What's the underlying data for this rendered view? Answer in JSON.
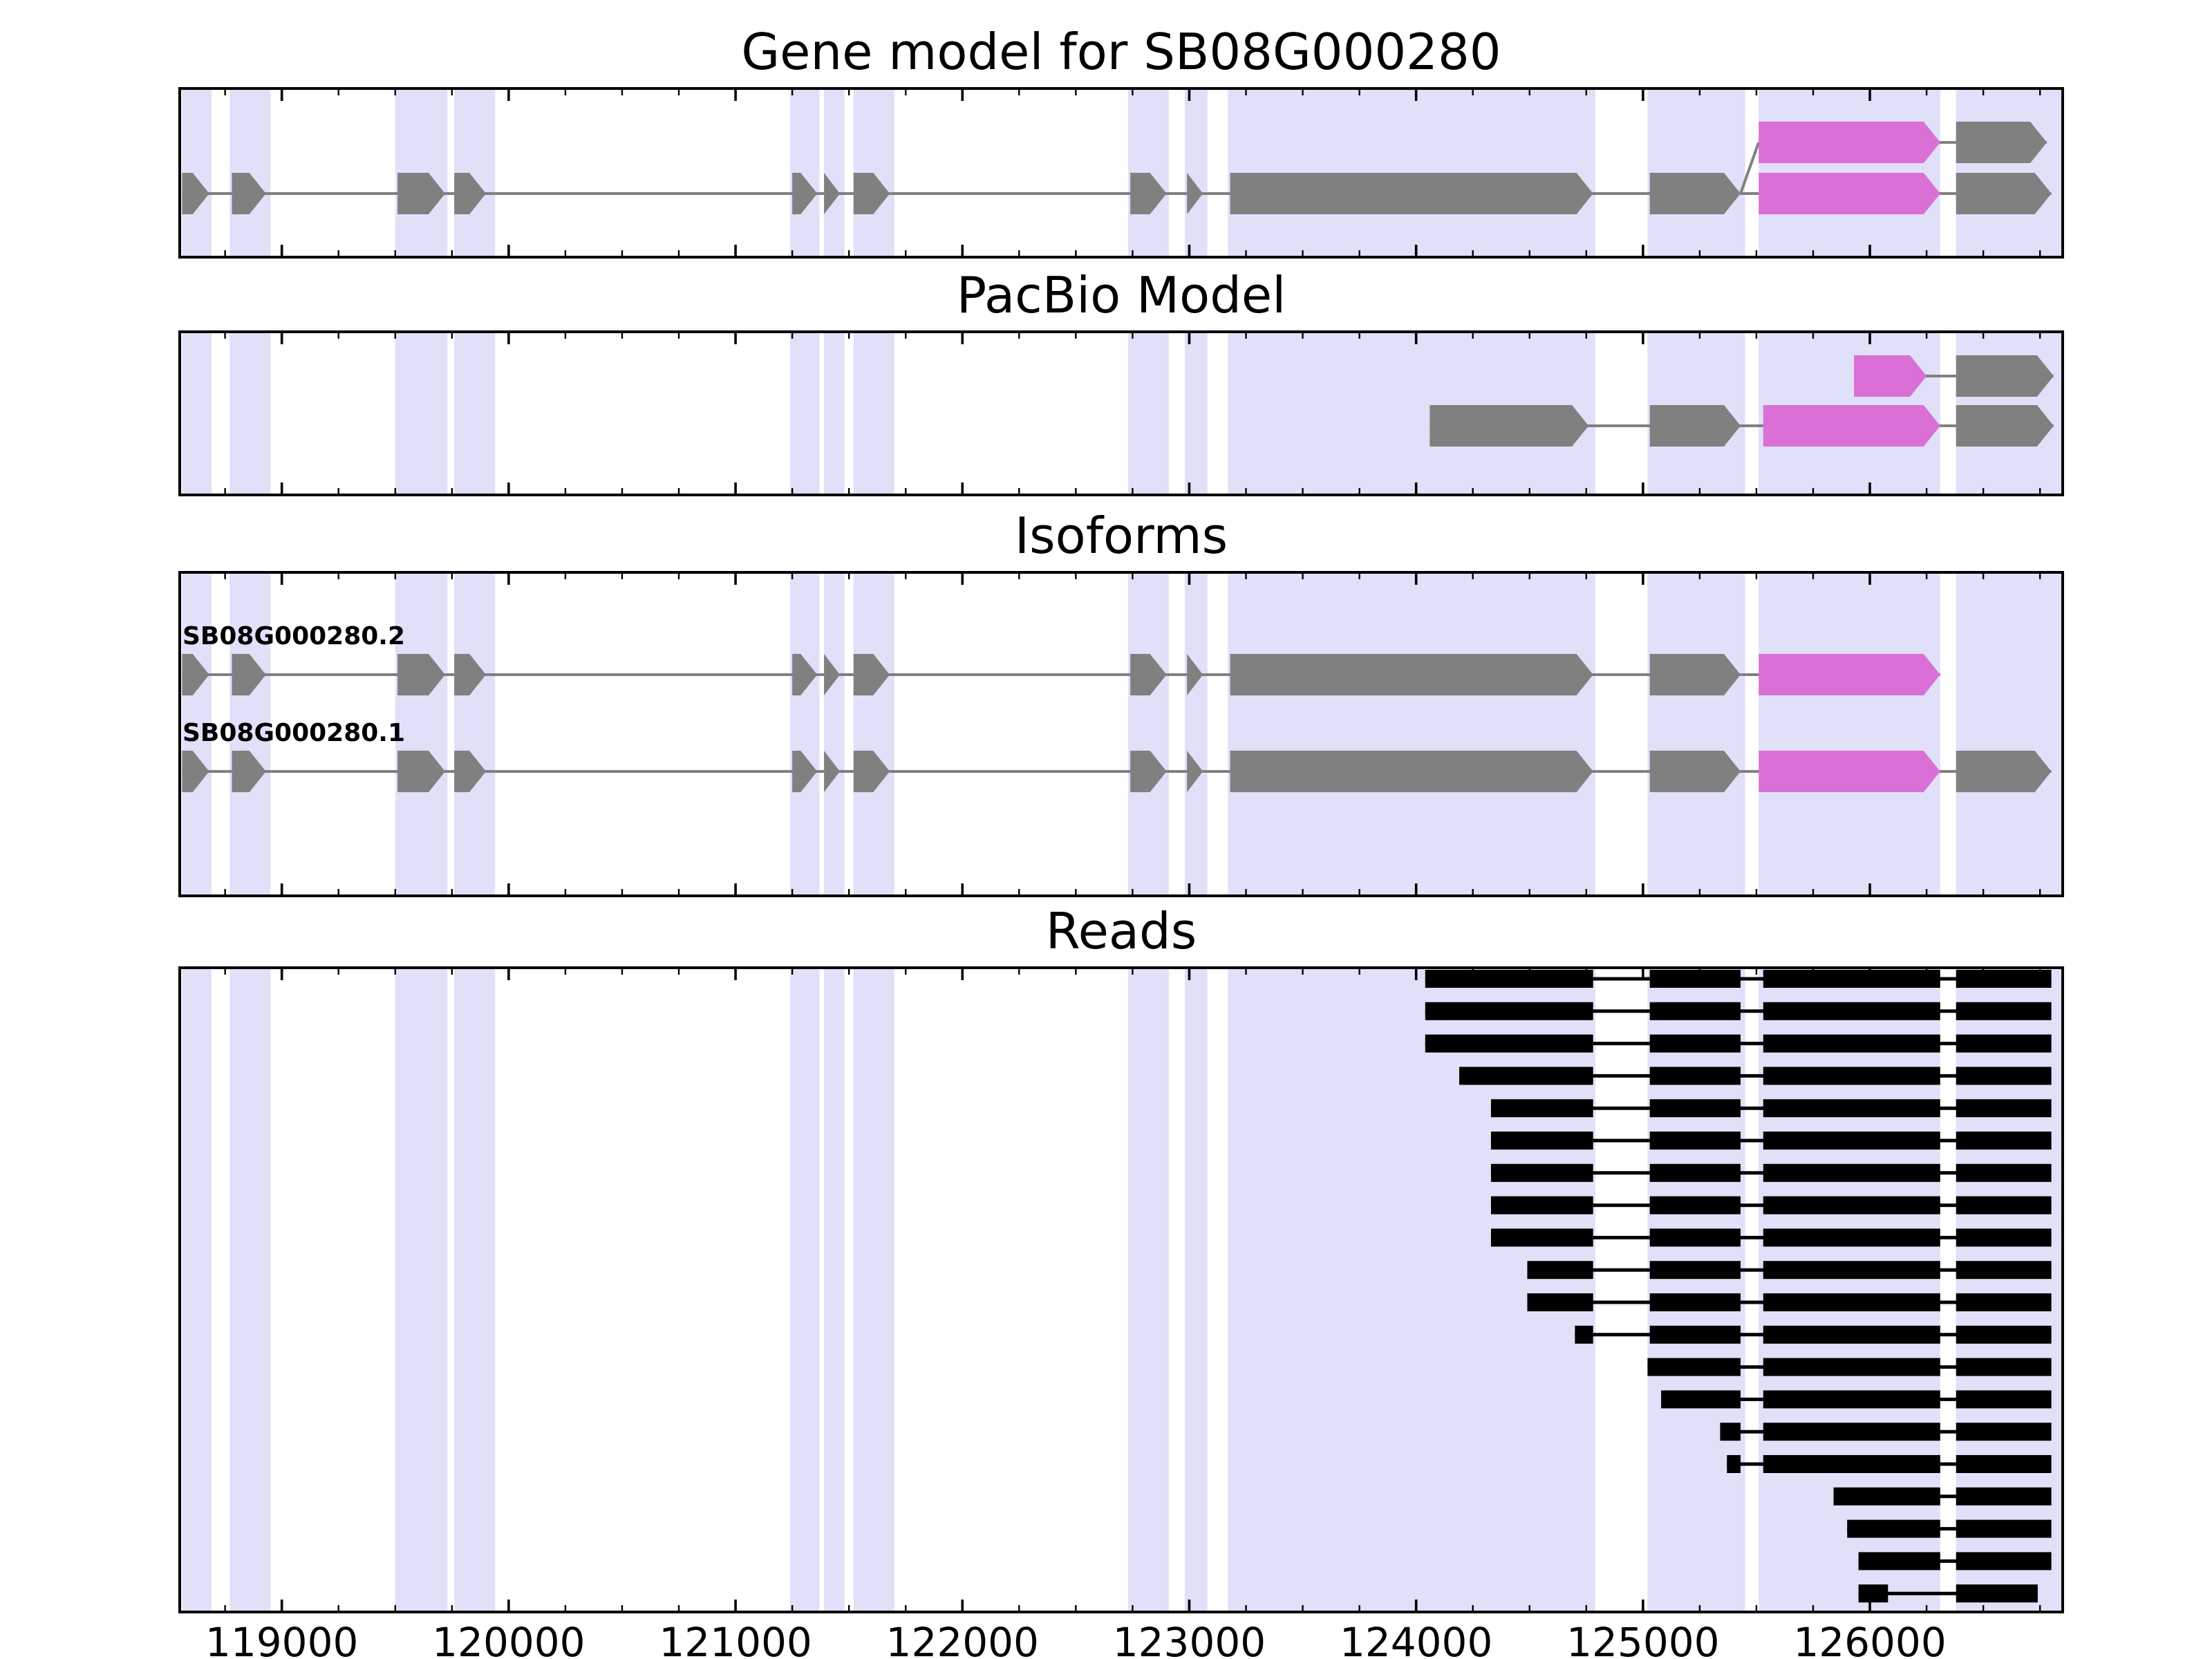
{
  "panels": [
    {
      "title": "Gene model for SB08G000280"
    },
    {
      "title": "PacBio Model"
    },
    {
      "title": "Isoforms"
    },
    {
      "title": "Reads"
    }
  ],
  "colors": {
    "background": "#FFFFFF",
    "band": "#E0E0F8",
    "exon": "#808080",
    "utr": "#DA70D6",
    "read": "#000000",
    "line": "#808080",
    "frame": "#000000"
  },
  "chart_data": {
    "type": "gene-model",
    "title": "Gene model for SB08G000280",
    "gene": "SB08G000280",
    "xlim": [
      118550,
      126850
    ],
    "xticks": [
      119000,
      120000,
      121000,
      122000,
      123000,
      124000,
      125000,
      126000
    ],
    "highlight_bands": [
      [
        118560,
        118690
      ],
      [
        118770,
        118950
      ],
      [
        119500,
        119730
      ],
      [
        119760,
        119940
      ],
      [
        121240,
        121370
      ],
      [
        121390,
        121480
      ],
      [
        121520,
        121700
      ],
      [
        122730,
        122910
      ],
      [
        122980,
        123080
      ],
      [
        123170,
        124790
      ],
      [
        125020,
        125450
      ],
      [
        125510,
        126310
      ],
      [
        126380,
        126850
      ]
    ],
    "gene_model": {
      "main_row": [
        [
          118560,
          118680,
          "exon"
        ],
        [
          118780,
          118930,
          "exon"
        ],
        [
          119510,
          119720,
          "exon"
        ],
        [
          119760,
          119900,
          "exon"
        ],
        [
          121250,
          121360,
          "exon"
        ],
        [
          121390,
          121460,
          "exon"
        ],
        [
          121520,
          121680,
          "exon"
        ],
        [
          122740,
          122900,
          "exon"
        ],
        [
          122990,
          123060,
          "exon"
        ],
        [
          123180,
          124780,
          "exon"
        ],
        [
          125030,
          125430,
          "exon"
        ],
        [
          125510,
          126310,
          "utr"
        ],
        [
          126380,
          126800,
          "exon"
        ]
      ],
      "alt_row": [
        [
          125510,
          126310,
          "utr"
        ],
        [
          126380,
          126780,
          "exon"
        ]
      ],
      "connector": [
        125430,
        125510
      ]
    },
    "pacbio_rows": [
      [
        [
          125930,
          126250,
          "utr"
        ],
        [
          126380,
          126810,
          "exon"
        ]
      ],
      [
        [
          124060,
          124760,
          "exon"
        ],
        [
          125030,
          125430,
          "exon"
        ],
        [
          125530,
          126310,
          "utr"
        ],
        [
          126380,
          126810,
          "exon"
        ]
      ]
    ],
    "isoforms": [
      {
        "name": "SB08G000280.2",
        "features": [
          [
            118560,
            118680,
            "exon"
          ],
          [
            118780,
            118930,
            "exon"
          ],
          [
            119510,
            119720,
            "exon"
          ],
          [
            119760,
            119900,
            "exon"
          ],
          [
            121250,
            121360,
            "exon"
          ],
          [
            121390,
            121460,
            "exon"
          ],
          [
            121520,
            121680,
            "exon"
          ],
          [
            122740,
            122900,
            "exon"
          ],
          [
            122990,
            123060,
            "exon"
          ],
          [
            123180,
            124780,
            "exon"
          ],
          [
            125030,
            125430,
            "exon"
          ],
          [
            125510,
            126310,
            "utr"
          ]
        ]
      },
      {
        "name": "SB08G000280.1",
        "features": [
          [
            118560,
            118680,
            "exon"
          ],
          [
            118780,
            118930,
            "exon"
          ],
          [
            119510,
            119720,
            "exon"
          ],
          [
            119760,
            119900,
            "exon"
          ],
          [
            121250,
            121360,
            "exon"
          ],
          [
            121390,
            121460,
            "exon"
          ],
          [
            121520,
            121680,
            "exon"
          ],
          [
            122740,
            122900,
            "exon"
          ],
          [
            122990,
            123060,
            "exon"
          ],
          [
            123180,
            124780,
            "exon"
          ],
          [
            125030,
            125430,
            "exon"
          ],
          [
            125510,
            126310,
            "utr"
          ],
          [
            126380,
            126800,
            "exon"
          ]
        ]
      }
    ],
    "reads": [
      [
        [
          124040,
          124780
        ],
        [
          125030,
          125430
        ],
        [
          125530,
          126310
        ],
        [
          126380,
          126800
        ]
      ],
      [
        [
          124040,
          124780
        ],
        [
          125030,
          125430
        ],
        [
          125530,
          126310
        ],
        [
          126380,
          126800
        ]
      ],
      [
        [
          124040,
          124780
        ],
        [
          125030,
          125430
        ],
        [
          125530,
          126310
        ],
        [
          126380,
          126800
        ]
      ],
      [
        [
          124190,
          124780
        ],
        [
          125030,
          125430
        ],
        [
          125530,
          126310
        ],
        [
          126380,
          126800
        ]
      ],
      [
        [
          124330,
          124780
        ],
        [
          125030,
          125430
        ],
        [
          125530,
          126310
        ],
        [
          126380,
          126800
        ]
      ],
      [
        [
          124330,
          124780
        ],
        [
          125030,
          125430
        ],
        [
          125530,
          126310
        ],
        [
          126380,
          126800
        ]
      ],
      [
        [
          124330,
          124780
        ],
        [
          125030,
          125430
        ],
        [
          125530,
          126310
        ],
        [
          126380,
          126800
        ]
      ],
      [
        [
          124330,
          124780
        ],
        [
          125030,
          125430
        ],
        [
          125530,
          126310
        ],
        [
          126380,
          126800
        ]
      ],
      [
        [
          124330,
          124780
        ],
        [
          125030,
          125430
        ],
        [
          125530,
          126310
        ],
        [
          126380,
          126800
        ]
      ],
      [
        [
          124490,
          124780
        ],
        [
          125030,
          125430
        ],
        [
          125530,
          126310
        ],
        [
          126380,
          126800
        ]
      ],
      [
        [
          124490,
          124780
        ],
        [
          125030,
          125430
        ],
        [
          125530,
          126310
        ],
        [
          126380,
          126800
        ]
      ],
      [
        [
          124700,
          124780
        ],
        [
          125030,
          125430
        ],
        [
          125530,
          126310
        ],
        [
          126380,
          126800
        ]
      ],
      [
        [
          125020,
          125430
        ],
        [
          125530,
          126310
        ],
        [
          126380,
          126800
        ]
      ],
      [
        [
          125080,
          125430
        ],
        [
          125530,
          126310
        ],
        [
          126380,
          126800
        ]
      ],
      [
        [
          125340,
          125430
        ],
        [
          125530,
          126310
        ],
        [
          126380,
          126800
        ]
      ],
      [
        [
          125370,
          125430
        ],
        [
          125530,
          126310
        ],
        [
          126380,
          126800
        ]
      ],
      [
        [
          125840,
          126310
        ],
        [
          126380,
          126800
        ]
      ],
      [
        [
          125900,
          126310
        ],
        [
          126380,
          126800
        ]
      ],
      [
        [
          125950,
          126310
        ],
        [
          126380,
          126800
        ]
      ],
      [
        [
          125950,
          126080
        ],
        [
          126380,
          126740
        ]
      ]
    ]
  }
}
